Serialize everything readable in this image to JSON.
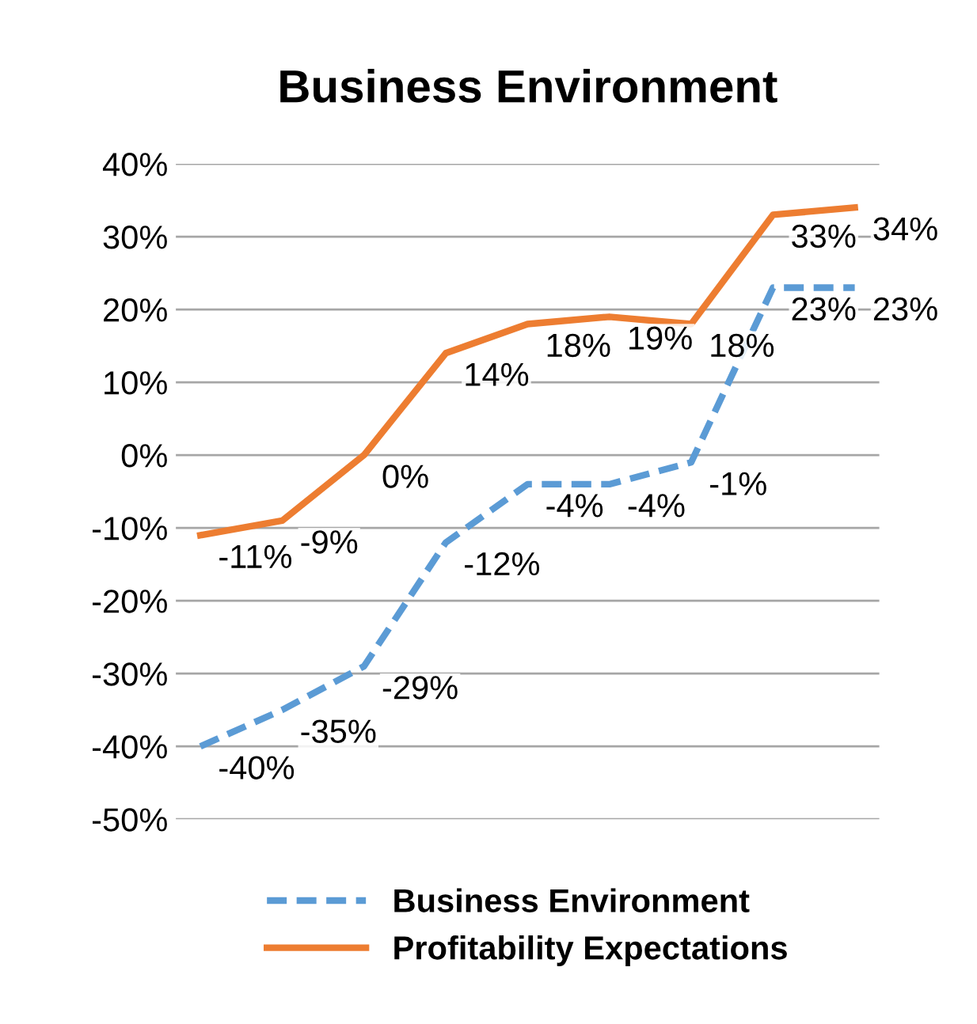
{
  "chart_data": {
    "type": "line",
    "title": "Business Environment",
    "categories": [
      null,
      null,
      null,
      null,
      null,
      null,
      null,
      null,
      null
    ],
    "series": [
      {
        "name": "Business Environment",
        "color": "#5b9bd5",
        "line_style": "dashed",
        "values": [
          -40,
          -35,
          -29,
          -12,
          -4,
          -4,
          -1,
          23,
          23
        ],
        "value_labels": [
          "-40%",
          "-35%",
          "-29%",
          "-12%",
          "-4%",
          "-4%",
          "-1%",
          "23%",
          "23%"
        ]
      },
      {
        "name": "Profitability Expectations",
        "color": "#ed7d31",
        "line_style": "solid",
        "values": [
          -11,
          -9,
          0,
          14,
          18,
          19,
          18,
          33,
          34
        ],
        "value_labels": [
          "-11%",
          "-9%",
          "0%",
          "14%",
          "18%",
          "19%",
          "18%",
          "33%",
          "34%"
        ]
      }
    ],
    "ylim": [
      -50,
      40
    ],
    "yticks": [
      {
        "value": -50,
        "label": "-50%"
      },
      {
        "value": -40,
        "label": "-40%"
      },
      {
        "value": -30,
        "label": "-30%"
      },
      {
        "value": -20,
        "label": "-20%"
      },
      {
        "value": -10,
        "label": "-10%"
      },
      {
        "value": 0,
        "label": "0%"
      },
      {
        "value": 10,
        "label": "10%"
      },
      {
        "value": 20,
        "label": "20%"
      },
      {
        "value": 30,
        "label": "30%"
      },
      {
        "value": 40,
        "label": "40%"
      }
    ],
    "grid": "y",
    "legend": "bottom",
    "marker": "none",
    "tick_labels": "y"
  }
}
